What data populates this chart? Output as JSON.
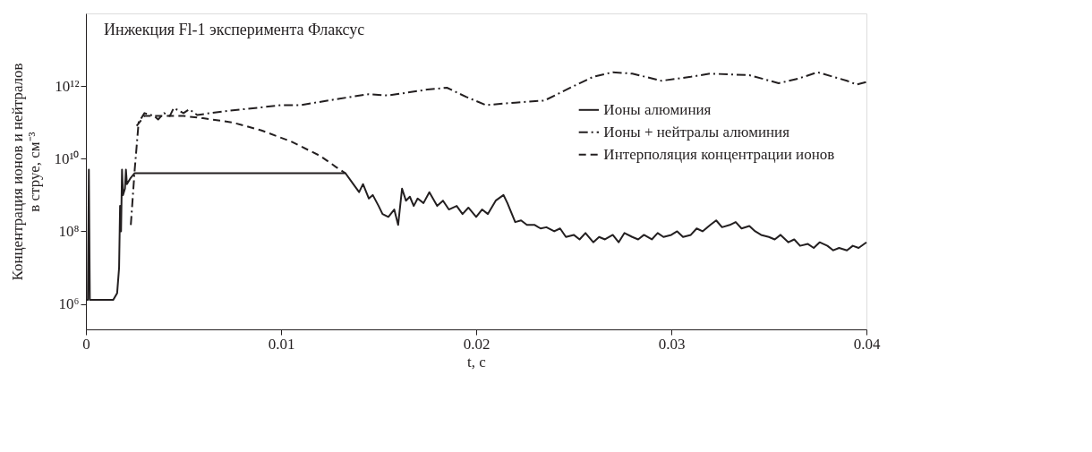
{
  "chart_data": {
    "type": "line",
    "title": "Инжекция Fl-1 эксперимента Флаксус",
    "xlabel": "t, с",
    "ylabel": "Концентрация ионов и нейтралов\nв струе, см⁻³",
    "log": "y",
    "grid": false,
    "legend": "right",
    "marker": "none",
    "xlim": [
      0,
      0.04
    ],
    "xticks": [
      0,
      0.01,
      0.02,
      0.03,
      0.04
    ],
    "ylim": [
      200000,
      100000000000000
    ],
    "yticks": [
      {
        "value": 1000000,
        "label": "10⁶"
      },
      {
        "value": 100000000,
        "label": "10⁸"
      },
      {
        "value": 10000000000,
        "label": "10¹⁰"
      },
      {
        "value": 1000000000000,
        "label": "10¹²"
      }
    ],
    "series": [
      {
        "name": "Ионы алюминия",
        "color": "#231f20",
        "line_style": "solid",
        "x": [
          0,
          0.0001,
          0.00015,
          0.0002,
          0.0008,
          0.0014,
          0.0016,
          0.0017,
          0.00175,
          0.0018,
          0.00185,
          0.0019,
          0.002,
          0.00205,
          0.0021,
          0.0023,
          0.0025,
          0.006,
          0.01,
          0.0133,
          0.0137,
          0.014,
          0.0142,
          0.0145,
          0.0147,
          0.015,
          0.0152,
          0.0155,
          0.0158,
          0.016,
          0.0162,
          0.0164,
          0.0166,
          0.0168,
          0.017,
          0.0173,
          0.0176,
          0.018,
          0.0183,
          0.0186,
          0.019,
          0.0193,
          0.0196,
          0.02,
          0.0203,
          0.0206,
          0.021,
          0.0214,
          0.0216,
          0.022,
          0.0223,
          0.0226,
          0.023,
          0.0233,
          0.0236,
          0.024,
          0.0243,
          0.0246,
          0.025,
          0.0253,
          0.0256,
          0.026,
          0.0263,
          0.0266,
          0.027,
          0.0273,
          0.0276,
          0.028,
          0.0283,
          0.0286,
          0.029,
          0.0293,
          0.0296,
          0.03,
          0.0303,
          0.0306,
          0.031,
          0.0313,
          0.0316,
          0.032,
          0.0323,
          0.0326,
          0.033,
          0.0333,
          0.0336,
          0.034,
          0.0343,
          0.0346,
          0.035,
          0.0353,
          0.0356,
          0.036,
          0.0363,
          0.0366,
          0.037,
          0.0373,
          0.0376,
          0.038,
          0.0383,
          0.0386,
          0.039,
          0.0393,
          0.0396,
          0.04
        ],
        "values": [
          1300000,
          1300000,
          5000000000,
          1300000,
          1300000,
          1300000,
          2000000,
          10000000,
          500000000,
          100000000,
          5000000000,
          1000000000,
          1500000000,
          5000000000,
          2000000000,
          3000000000,
          4000000000,
          4000000000,
          4000000000,
          4000000000,
          2000000000,
          1200000000,
          2000000000,
          800000000,
          1000000000,
          500000000,
          300000000,
          250000000,
          400000000,
          150000000,
          1500000000,
          700000000,
          900000000,
          500000000,
          800000000,
          600000000,
          1200000000,
          500000000,
          700000000,
          400000000,
          500000000,
          300000000,
          450000000,
          250000000,
          400000000,
          300000000,
          700000000,
          1000000000,
          600000000,
          180000000,
          200000000,
          150000000,
          150000000,
          120000000,
          130000000,
          100000000,
          120000000,
          70000000,
          80000000,
          60000000,
          90000000,
          50000000,
          70000000,
          60000000,
          80000000,
          50000000,
          90000000,
          70000000,
          60000000,
          80000000,
          60000000,
          90000000,
          70000000,
          80000000,
          100000000,
          70000000,
          80000000,
          120000000,
          100000000,
          150000000,
          200000000,
          130000000,
          150000000,
          180000000,
          120000000,
          140000000,
          100000000,
          80000000,
          70000000,
          60000000,
          80000000,
          50000000,
          60000000,
          40000000,
          45000000,
          35000000,
          50000000,
          40000000,
          30000000,
          35000000,
          30000000,
          40000000,
          35000000,
          50000000
        ]
      },
      {
        "name": "Ионы  + нейтралы алюминия",
        "color": "#231f20",
        "line_style": "dashdot",
        "x": [
          0.0023,
          0.0025,
          0.0027,
          0.003,
          0.0035,
          0.0037,
          0.004,
          0.0043,
          0.0045,
          0.005,
          0.0053,
          0.0057,
          0.007,
          0.009,
          0.01,
          0.011,
          0.013,
          0.0145,
          0.0155,
          0.0175,
          0.0185,
          0.0195,
          0.0205,
          0.022,
          0.0235,
          0.025,
          0.026,
          0.027,
          0.028,
          0.0295,
          0.031,
          0.032,
          0.034,
          0.0355,
          0.0365,
          0.0375,
          0.039,
          0.0395,
          0.04
        ],
        "values": [
          150000000,
          5000000000,
          100000000000,
          180000000000,
          150000000000,
          120000000000,
          180000000000,
          150000000000,
          250000000000,
          180000000000,
          230000000000,
          160000000000,
          200000000000,
          260000000000,
          300000000000,
          300000000000,
          450000000000,
          600000000000,
          550000000000,
          800000000000,
          900000000000,
          500000000000,
          300000000000,
          350000000000,
          400000000000,
          1000000000000,
          1800000000000,
          2400000000000,
          2200000000000,
          1400000000000,
          1800000000000,
          2200000000000,
          2000000000000,
          1200000000000,
          1600000000000,
          2400000000000,
          1400000000000,
          1100000000000,
          1300000000000
        ]
      },
      {
        "name": "Интерполяция концентрации ионов",
        "color": "#231f20",
        "line_style": "dashed",
        "x": [
          0.0026,
          0.003,
          0.004,
          0.005,
          0.006,
          0.0075,
          0.009,
          0.0105,
          0.012,
          0.0128,
          0.0133
        ],
        "values": [
          80000000000,
          150000000000,
          150000000000,
          150000000000,
          130000000000,
          100000000000,
          60000000000,
          30000000000,
          12000000000,
          6000000000,
          4000000000
        ]
      }
    ]
  }
}
